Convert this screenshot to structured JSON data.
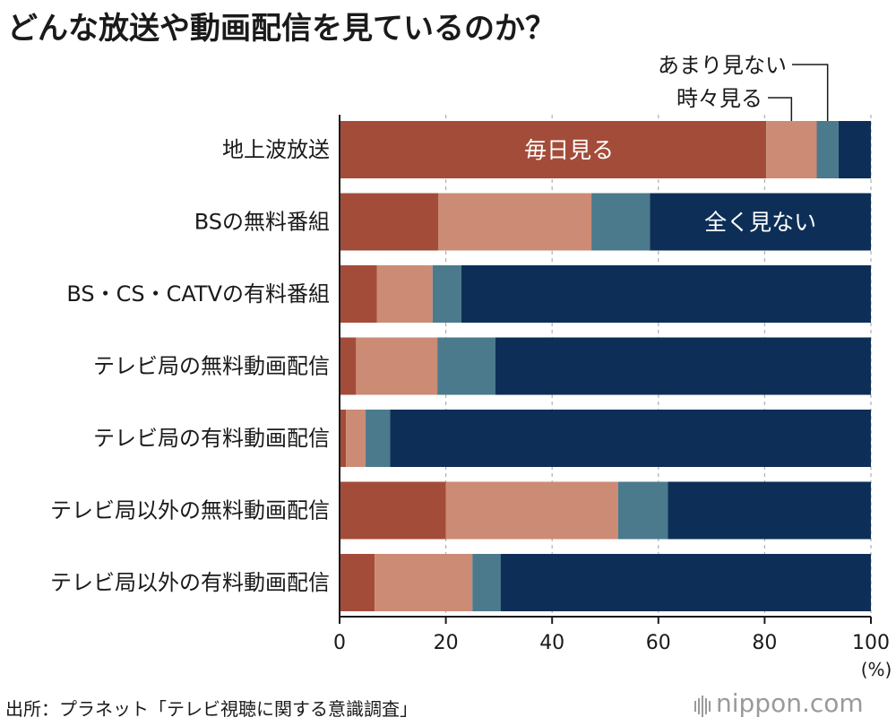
{
  "title": "どんな放送や動画配信を見ているのか？",
  "source": "出所：プラネット「テレビ視聴に関する意識調査」",
  "logo": "nippon.com",
  "colors": {
    "daily": "#a44c3a",
    "sometimes": "#cc8b75",
    "rarely": "#4b7a8c",
    "never": "#0d2f57",
    "grid": "#b0b0b0"
  },
  "chart_data": {
    "type": "bar",
    "orientation": "horizontal",
    "stacked": true,
    "categories": [
      "地上波放送",
      "BSの無料番組",
      "BS・CS・CATVの有料番組",
      "テレビ局の無料動画配信",
      "テレビ局の有料動画配信",
      "テレビ局以外の無料動画配信",
      "テレビ局以外の有料動画配信"
    ],
    "series": [
      {
        "name": "毎日見る",
        "values": [
          80.3,
          18.6,
          7.0,
          3.1,
          1.2,
          20.0,
          6.6
        ]
      },
      {
        "name": "時々見る",
        "values": [
          9.5,
          28.8,
          10.5,
          15.3,
          3.7,
          32.4,
          18.4
        ]
      },
      {
        "name": "あまり見ない",
        "values": [
          4.1,
          11.0,
          5.4,
          10.9,
          4.6,
          9.4,
          5.3
        ]
      },
      {
        "name": "全く見ない",
        "values": [
          6.1,
          41.6,
          77.1,
          70.7,
          90.5,
          38.2,
          69.7
        ]
      }
    ],
    "xlim": [
      0,
      100
    ],
    "xticks": [
      "0",
      "20",
      "40",
      "60",
      "80",
      "100"
    ],
    "xunit": "(%)",
    "grid": true,
    "inline_labels": {
      "daily": "毎日見る",
      "never": "全く見ない"
    },
    "callouts": {
      "sometimes": "時々見る",
      "rarely": "あまり見ない"
    }
  }
}
